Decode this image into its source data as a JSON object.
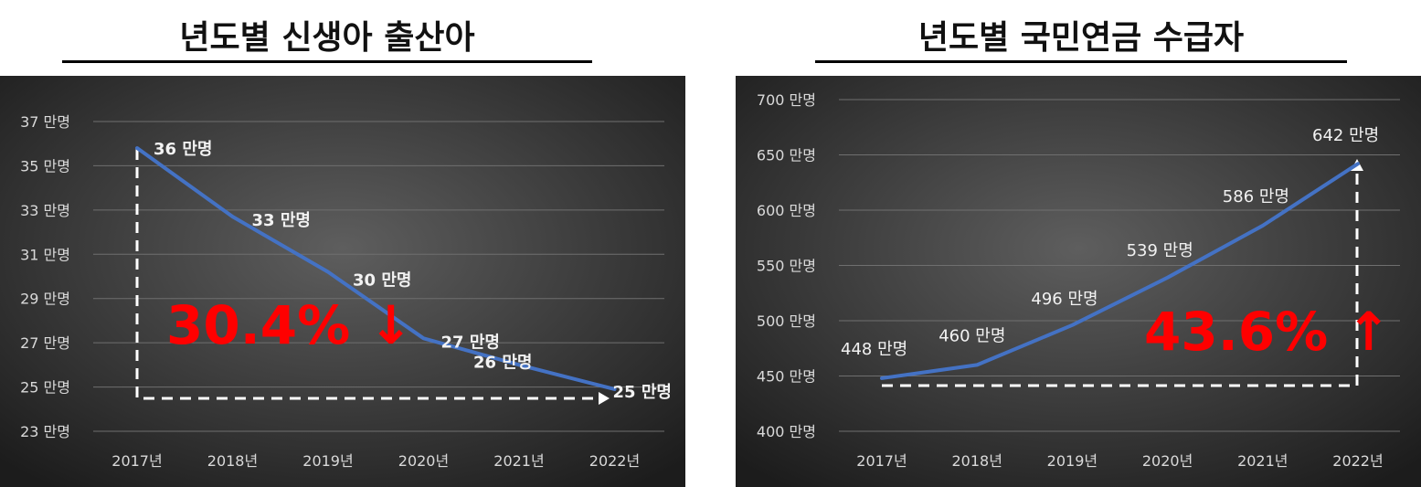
{
  "chart_data": [
    {
      "type": "line",
      "title": "년도별 신생아 출산아",
      "categories": [
        "2017년",
        "2018년",
        "2019년",
        "2020년",
        "2021년",
        "2022년"
      ],
      "values": [
        35.8,
        32.7,
        30.2,
        27.2,
        26.0,
        24.9
      ],
      "data_labels": [
        "36 만명",
        "33 만명",
        "30 만명",
        "27 만명",
        "26 만명",
        "25 만명"
      ],
      "y_ticks": [
        23,
        25,
        27,
        29,
        31,
        33,
        35,
        37
      ],
      "y_tick_labels": [
        "23 만명",
        "25 만명",
        "27 만명",
        "29 만명",
        "31 만명",
        "33 만명",
        "35 만명",
        "37 만명"
      ],
      "ylim": [
        23,
        37
      ],
      "grid": true,
      "annotation": "30.4% ↓",
      "line_color": "#4472C4",
      "annotation_color": "#FF0000"
    },
    {
      "type": "line",
      "title": "년도별 국민연금 수급자",
      "categories": [
        "2017년",
        "2018년",
        "2019년",
        "2020년",
        "2021년",
        "2022년"
      ],
      "values": [
        448,
        460,
        496,
        539,
        586,
        642
      ],
      "data_labels": [
        "448 만명",
        "460 만명",
        "496 만명",
        "539 만명",
        "586 만명",
        "642 만명"
      ],
      "y_ticks": [
        400,
        450,
        500,
        550,
        600,
        650,
        700
      ],
      "y_tick_labels": [
        "400 만명",
        "450 만명",
        "500 만명",
        "550 만명",
        "600 만명",
        "650 만명",
        "700 만명"
      ],
      "ylim": [
        400,
        700
      ],
      "grid": true,
      "annotation": "43.6% ↑",
      "line_color": "#4472C4",
      "annotation_color": "#FF0000"
    }
  ]
}
